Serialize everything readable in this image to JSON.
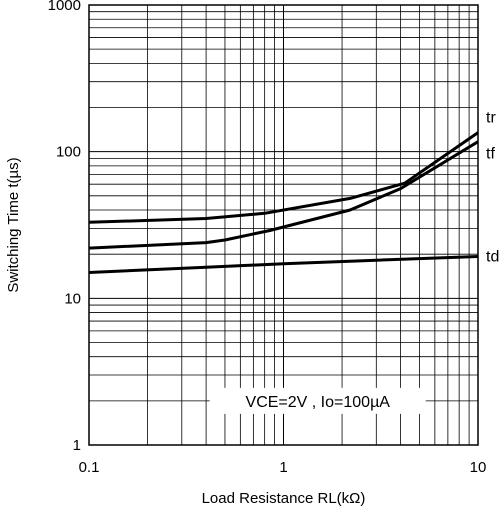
{
  "chart_data": {
    "type": "line",
    "title": "",
    "xlabel": "Load Resistance RL(kΩ)",
    "ylabel": "Switching Time t(µs)",
    "x_scale": "log",
    "y_scale": "log",
    "xlim": [
      0.1,
      10
    ],
    "ylim": [
      1,
      1000
    ],
    "x_ticks": [
      {
        "value": 0.1,
        "label": "0.1"
      },
      {
        "value": 1,
        "label": "1"
      },
      {
        "value": 10,
        "label": "10"
      }
    ],
    "y_ticks": [
      {
        "value": 1,
        "label": "1"
      },
      {
        "value": 10,
        "label": "10"
      },
      {
        "value": 100,
        "label": "100"
      },
      {
        "value": 1000,
        "label": "1000"
      }
    ],
    "grid": true,
    "annotation": "VCE=2V , Io=100µA",
    "series": [
      {
        "name": "tr",
        "points": [
          [
            0.1,
            33
          ],
          [
            0.4,
            35
          ],
          [
            0.8,
            38
          ],
          [
            2.2,
            48
          ],
          [
            4.2,
            61
          ],
          [
            10,
            135
          ]
        ]
      },
      {
        "name": "tf",
        "points": [
          [
            0.1,
            22
          ],
          [
            0.4,
            24
          ],
          [
            0.5,
            25
          ],
          [
            0.85,
            29
          ],
          [
            2.2,
            40
          ],
          [
            4.0,
            56
          ],
          [
            10,
            117
          ]
        ]
      },
      {
        "name": "td",
        "points": [
          [
            0.1,
            15
          ],
          [
            0.4,
            16.3
          ],
          [
            1,
            17.2
          ],
          [
            3,
            18.2
          ],
          [
            10,
            19.3
          ]
        ]
      }
    ]
  }
}
